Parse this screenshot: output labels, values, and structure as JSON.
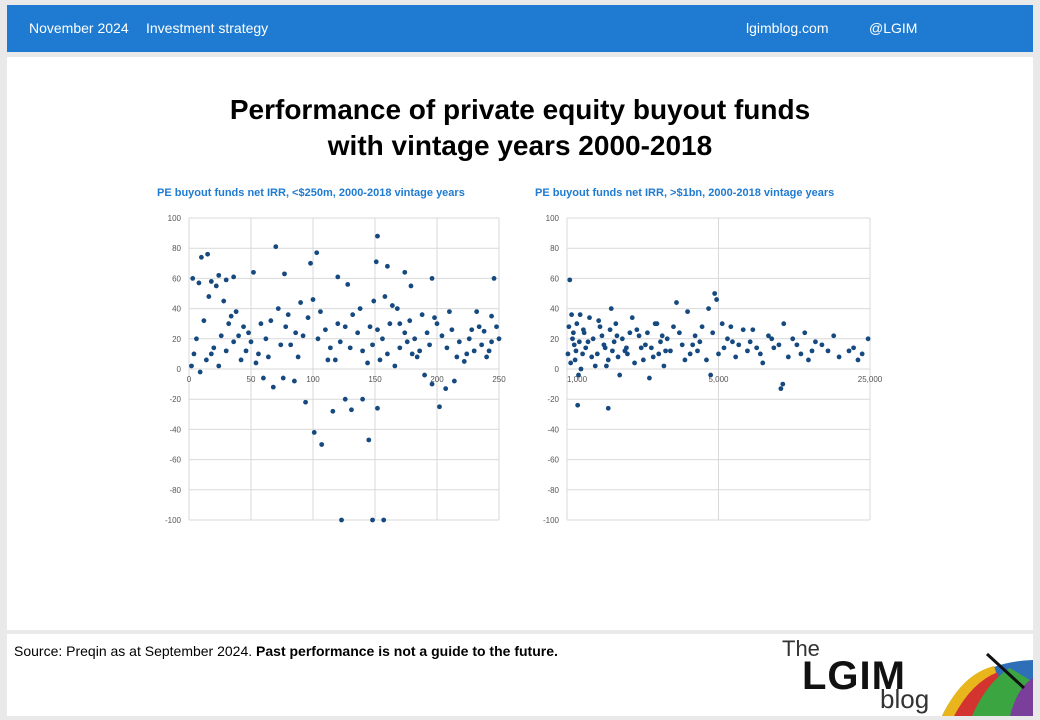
{
  "header": {
    "date": "November 2024",
    "section": "Investment strategy",
    "site": "lgimblog.com",
    "handle": "@LGIM"
  },
  "title_line1": "Performance of private equity buyout funds",
  "title_line2": "with vintage years 2000-2018",
  "footer": {
    "source": "Source: Preqin as at September 2024.",
    "disclaimer": "Past performance is not a guide to the future.",
    "logo_the": "The",
    "logo_lgim": "LGIM",
    "logo_blog": "blog"
  },
  "colors": {
    "accent": "#1f7bd1",
    "points": "#15497f",
    "grid": "#d9d9d9"
  },
  "chart_data": [
    {
      "type": "scatter",
      "title": "PE buyout funds net IRR, <$250m, 2000-2018 vintage years",
      "xlim": [
        0,
        250
      ],
      "ylim": [
        -100,
        100
      ],
      "xticks": [
        0,
        50,
        100,
        150,
        200,
        250
      ],
      "xtick_labels": [
        "0",
        "50",
        "100",
        "150",
        "200",
        "250"
      ],
      "yticks": [
        100,
        80,
        60,
        40,
        20,
        0,
        -20,
        -40,
        -60,
        -80,
        -100
      ],
      "grid": true,
      "points": [
        [
          3,
          60
        ],
        [
          8,
          57
        ],
        [
          10,
          74
        ],
        [
          15,
          76
        ],
        [
          18,
          58
        ],
        [
          24,
          62
        ],
        [
          30,
          59
        ],
        [
          36,
          61
        ],
        [
          52,
          64
        ],
        [
          70,
          81
        ],
        [
          77,
          63
        ],
        [
          98,
          70
        ],
        [
          103,
          77
        ],
        [
          120,
          61
        ],
        [
          128,
          56
        ],
        [
          152,
          88
        ],
        [
          160,
          68
        ],
        [
          174,
          64
        ],
        [
          179,
          55
        ],
        [
          196,
          60
        ],
        [
          246,
          60
        ],
        [
          250,
          20
        ],
        [
          244,
          35
        ],
        [
          238,
          25
        ],
        [
          230,
          12
        ],
        [
          222,
          5
        ],
        [
          214,
          -8
        ],
        [
          207,
          -13
        ],
        [
          202,
          -25
        ],
        [
          196,
          -10
        ],
        [
          190,
          -4
        ],
        [
          184,
          8
        ],
        [
          176,
          18
        ],
        [
          170,
          30
        ],
        [
          164,
          42
        ],
        [
          158,
          48
        ],
        [
          151,
          71
        ],
        [
          149,
          45
        ],
        [
          145,
          -47
        ],
        [
          148,
          -100
        ],
        [
          152,
          -26
        ],
        [
          157,
          -100
        ],
        [
          140,
          -20
        ],
        [
          131,
          -27
        ],
        [
          126,
          -20
        ],
        [
          123,
          -100
        ],
        [
          116,
          -28
        ],
        [
          107,
          -50
        ],
        [
          101,
          -42
        ],
        [
          94,
          -22
        ],
        [
          85,
          -8
        ],
        [
          76,
          -6
        ],
        [
          68,
          -12
        ],
        [
          60,
          -6
        ],
        [
          54,
          4
        ],
        [
          46,
          12
        ],
        [
          40,
          22
        ],
        [
          34,
          35
        ],
        [
          28,
          45
        ],
        [
          22,
          55
        ],
        [
          16,
          48
        ],
        [
          12,
          32
        ],
        [
          6,
          20
        ],
        [
          4,
          10
        ],
        [
          2,
          2
        ],
        [
          9,
          -2
        ],
        [
          14,
          6
        ],
        [
          20,
          14
        ],
        [
          26,
          22
        ],
        [
          32,
          30
        ],
        [
          38,
          38
        ],
        [
          44,
          28
        ],
        [
          50,
          18
        ],
        [
          56,
          10
        ],
        [
          62,
          20
        ],
        [
          66,
          32
        ],
        [
          72,
          40
        ],
        [
          78,
          28
        ],
        [
          82,
          16
        ],
        [
          88,
          8
        ],
        [
          92,
          22
        ],
        [
          96,
          34
        ],
        [
          100,
          46
        ],
        [
          106,
          38
        ],
        [
          110,
          26
        ],
        [
          114,
          14
        ],
        [
          118,
          6
        ],
        [
          122,
          18
        ],
        [
          126,
          28
        ],
        [
          132,
          36
        ],
        [
          136,
          24
        ],
        [
          140,
          12
        ],
        [
          144,
          4
        ],
        [
          148,
          16
        ],
        [
          152,
          26
        ],
        [
          156,
          20
        ],
        [
          160,
          10
        ],
        [
          166,
          2
        ],
        [
          170,
          14
        ],
        [
          174,
          24
        ],
        [
          178,
          32
        ],
        [
          182,
          20
        ],
        [
          186,
          12
        ],
        [
          192,
          24
        ],
        [
          198,
          34
        ],
        [
          204,
          22
        ],
        [
          208,
          14
        ],
        [
          212,
          26
        ],
        [
          218,
          18
        ],
        [
          224,
          10
        ],
        [
          228,
          26
        ],
        [
          232,
          38
        ],
        [
          236,
          16
        ],
        [
          240,
          8
        ],
        [
          244,
          18
        ],
        [
          248,
          28
        ],
        [
          18,
          10
        ],
        [
          24,
          2
        ],
        [
          30,
          12
        ],
        [
          36,
          18
        ],
        [
          42,
          6
        ],
        [
          48,
          24
        ],
        [
          58,
          30
        ],
        [
          64,
          8
        ],
        [
          74,
          16
        ],
        [
          80,
          36
        ],
        [
          86,
          24
        ],
        [
          90,
          44
        ],
        [
          104,
          20
        ],
        [
          112,
          6
        ],
        [
          120,
          30
        ],
        [
          130,
          14
        ],
        [
          138,
          40
        ],
        [
          146,
          28
        ],
        [
          154,
          6
        ],
        [
          162,
          30
        ],
        [
          168,
          40
        ],
        [
          180,
          10
        ],
        [
          188,
          36
        ],
        [
          194,
          16
        ],
        [
          200,
          30
        ],
        [
          210,
          38
        ],
        [
          216,
          8
        ],
        [
          226,
          20
        ],
        [
          234,
          28
        ],
        [
          242,
          12
        ]
      ]
    },
    {
      "type": "scatter",
      "title": "PE buyout funds net IRR, >$1bn, 2000-2018 vintage years",
      "xscale": "log",
      "xlim": [
        1000,
        25000
      ],
      "ylim": [
        -100,
        100
      ],
      "xticks": [
        1000,
        5000,
        25000
      ],
      "xtick_labels": [
        "1,000",
        "5,000",
        "25,000"
      ],
      "yticks": [
        100,
        80,
        60,
        40,
        20,
        0,
        -20,
        -40,
        -60,
        -80,
        -100
      ],
      "grid": true,
      "points": [
        [
          1030,
          59
        ],
        [
          1120,
          -24
        ],
        [
          1550,
          -26
        ],
        [
          4800,
          50
        ],
        [
          4900,
          46
        ],
        [
          9700,
          -13
        ],
        [
          9900,
          -10
        ],
        [
          24500,
          20
        ],
        [
          20000,
          12
        ],
        [
          17000,
          22
        ],
        [
          14000,
          18
        ],
        [
          12000,
          10
        ],
        [
          10000,
          30
        ],
        [
          8500,
          22
        ],
        [
          7500,
          14
        ],
        [
          6500,
          26
        ],
        [
          5800,
          18
        ],
        [
          5200,
          30
        ],
        [
          4500,
          40
        ],
        [
          4000,
          12
        ],
        [
          3600,
          38
        ],
        [
          3200,
          44
        ],
        [
          2900,
          20
        ],
        [
          2600,
          30
        ],
        [
          2300,
          16
        ],
        [
          2100,
          26
        ],
        [
          1900,
          10
        ],
        [
          1700,
          22
        ],
        [
          1600,
          40
        ],
        [
          1500,
          14
        ],
        [
          1400,
          32
        ],
        [
          1300,
          8
        ],
        [
          1200,
          24
        ],
        [
          1150,
          36
        ],
        [
          1100,
          12
        ],
        [
          1060,
          20
        ],
        [
          1020,
          28
        ],
        [
          1040,
          4
        ],
        [
          1080,
          16
        ],
        [
          1130,
          -4
        ],
        [
          1180,
          10
        ],
        [
          1250,
          18
        ],
        [
          1350,
          2
        ],
        [
          1450,
          22
        ],
        [
          1550,
          6
        ],
        [
          1650,
          18
        ],
        [
          1750,
          -4
        ],
        [
          1850,
          12
        ],
        [
          1950,
          24
        ],
        [
          2050,
          4
        ],
        [
          2200,
          14
        ],
        [
          2400,
          -6
        ],
        [
          2500,
          8
        ],
        [
          2700,
          18
        ],
        [
          2800,
          2
        ],
        [
          3000,
          12
        ],
        [
          3300,
          24
        ],
        [
          3500,
          6
        ],
        [
          3800,
          16
        ],
        [
          4200,
          28
        ],
        [
          4600,
          -4
        ],
        [
          5000,
          10
        ],
        [
          5500,
          20
        ],
        [
          6000,
          8
        ],
        [
          7000,
          18
        ],
        [
          8000,
          4
        ],
        [
          9000,
          14
        ],
        [
          11000,
          20
        ],
        [
          13000,
          6
        ],
        [
          15000,
          16
        ],
        [
          16000,
          12
        ],
        [
          18000,
          8
        ],
        [
          21000,
          14
        ],
        [
          22000,
          6
        ],
        [
          23000,
          10
        ],
        [
          1010,
          10
        ],
        [
          1050,
          36
        ],
        [
          1070,
          24
        ],
        [
          1090,
          6
        ],
        [
          1110,
          30
        ],
        [
          1140,
          18
        ],
        [
          1160,
          0
        ],
        [
          1190,
          26
        ],
        [
          1220,
          14
        ],
        [
          1270,
          34
        ],
        [
          1320,
          20
        ],
        [
          1380,
          10
        ],
        [
          1420,
          28
        ],
        [
          1480,
          16
        ],
        [
          1520,
          2
        ],
        [
          1580,
          26
        ],
        [
          1620,
          12
        ],
        [
          1680,
          30
        ],
        [
          1720,
          8
        ],
        [
          1800,
          20
        ],
        [
          1880,
          14
        ],
        [
          2000,
          34
        ],
        [
          2150,
          22
        ],
        [
          2250,
          6
        ],
        [
          2350,
          24
        ],
        [
          2450,
          14
        ],
        [
          2550,
          30
        ],
        [
          2650,
          10
        ],
        [
          2750,
          22
        ],
        [
          2850,
          12
        ],
        [
          3100,
          28
        ],
        [
          3400,
          16
        ],
        [
          3700,
          10
        ],
        [
          3900,
          22
        ],
        [
          4100,
          18
        ],
        [
          4400,
          6
        ],
        [
          4700,
          24
        ],
        [
          5300,
          14
        ],
        [
          5700,
          28
        ],
        [
          6200,
          16
        ],
        [
          6800,
          12
        ],
        [
          7200,
          26
        ],
        [
          7800,
          10
        ],
        [
          8800,
          20
        ],
        [
          9500,
          16
        ],
        [
          10500,
          8
        ],
        [
          11500,
          16
        ],
        [
          12500,
          24
        ],
        [
          13500,
          12
        ]
      ]
    }
  ]
}
